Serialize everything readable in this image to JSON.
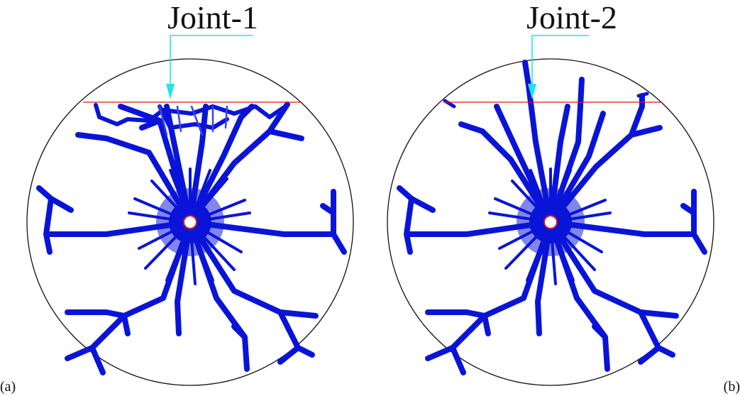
{
  "panels": [
    {
      "tag": "(a)",
      "title": "Joint-1",
      "colors": {
        "crack": "#0a14d8",
        "joint": "#d61a1a",
        "arrow": "#1ee4ee",
        "outline": "#111111",
        "borehole": "#d61a1a"
      }
    },
    {
      "tag": "(b)",
      "title": "Joint-2",
      "colors": {
        "crack": "#0a14d8",
        "joint": "#d61a1a",
        "arrow": "#1ee4ee",
        "outline": "#111111",
        "borehole": "#d61a1a"
      }
    }
  ]
}
